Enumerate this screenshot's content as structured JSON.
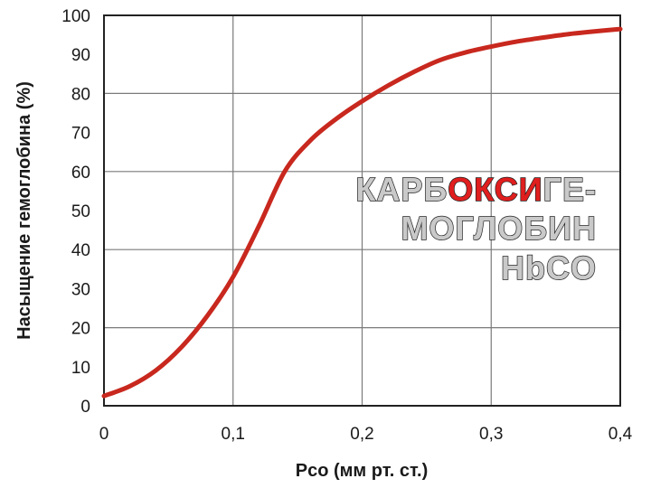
{
  "chart_data": {
    "type": "line",
    "xlabel": "Pco (мм рт. ст.)",
    "ylabel": "Насыщение гемоглобина (%)",
    "xlim": [
      0,
      0.4
    ],
    "ylim": [
      0,
      100
    ],
    "x_ticks": [
      "0",
      "0,1",
      "0,2",
      "0,3",
      "0,4"
    ],
    "y_ticks": [
      "0",
      "10",
      "20",
      "30",
      "40",
      "50",
      "60",
      "70",
      "80",
      "90",
      "100"
    ],
    "grid": true,
    "line_color": "#c8281e",
    "series": [
      {
        "x": [
          0,
          0.02,
          0.04,
          0.06,
          0.08,
          0.1,
          0.12,
          0.14,
          0.16,
          0.18,
          0.2,
          0.22,
          0.24,
          0.26,
          0.28,
          0.3,
          0.32,
          0.34,
          0.36,
          0.38,
          0.4
        ],
        "y": [
          2.5,
          5,
          9,
          15,
          23,
          33,
          46,
          60,
          68,
          73.5,
          78,
          82,
          85.5,
          88.5,
          90.5,
          92,
          93.3,
          94.3,
          95.2,
          95.9,
          96.5
        ]
      }
    ],
    "annotation": {
      "lines": [
        [
          {
            "text": "КАРБ",
            "color": "#c9c9c9"
          },
          {
            "text": "ОКСИ",
            "color": "#e01e1e"
          },
          {
            "text": "ГЕ-",
            "color": "#c9c9c9"
          }
        ],
        [
          {
            "text": "МОГЛОБИН",
            "color": "#c9c9c9"
          }
        ],
        [
          {
            "text": "HbCO",
            "color": "#c9c9c9"
          }
        ]
      ]
    }
  }
}
